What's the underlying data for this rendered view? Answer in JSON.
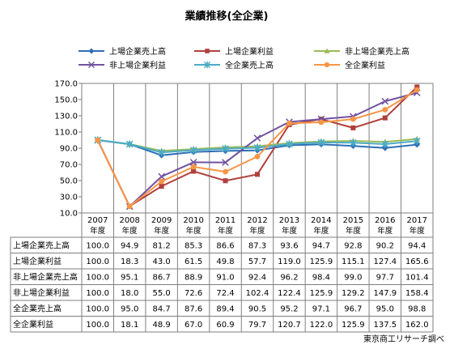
{
  "chart_data": {
    "type": "line",
    "title": "業績推移(全企業)",
    "source": "東京商工リサーチ調べ",
    "ylim": [
      10,
      170
    ],
    "yticks": [
      "170.0",
      "150.0",
      "130.0",
      "110.0",
      "90.0",
      "70.0",
      "50.0",
      "30.0",
      "10.0"
    ],
    "categories": [
      "2007",
      "2008",
      "2009",
      "2010",
      "2011",
      "2012",
      "2013",
      "2014",
      "2015",
      "2016",
      "2017"
    ],
    "category_suffix": "年度",
    "grid": "vertical",
    "legend_position": "top",
    "series": [
      {
        "name": "上場企業売上高",
        "color": "#2e6fb5",
        "marker": "diamond",
        "values": [
          100.0,
          94.9,
          81.2,
          85.3,
          86.6,
          87.3,
          93.6,
          94.7,
          92.8,
          90.2,
          94.4
        ],
        "labels": [
          "100.0",
          "94.9",
          "81.2",
          "85.3",
          "86.6",
          "87.3",
          "93.6",
          "94.7",
          "92.8",
          "90.2",
          "94.4"
        ]
      },
      {
        "name": "上場企業利益",
        "color": "#b0413e",
        "marker": "square",
        "values": [
          100.0,
          18.3,
          43.0,
          61.5,
          49.8,
          57.7,
          119.0,
          125.9,
          115.1,
          127.4,
          165.6
        ],
        "labels": [
          "100.0",
          "18.3",
          "43.0",
          "61.5",
          "49.8",
          "57.7",
          "119.0",
          "125.9",
          "115.1",
          "127.4",
          "165.6"
        ]
      },
      {
        "name": "非上場企業売上高",
        "color": "#9bbb59",
        "marker": "triangle",
        "values": [
          100.0,
          95.1,
          86.7,
          88.9,
          91.0,
          92.4,
          96.2,
          98.4,
          99.0,
          97.7,
          101.4
        ],
        "labels": [
          "100.0",
          "95.1",
          "86.7",
          "88.9",
          "91.0",
          "92.4",
          "96.2",
          "98.4",
          "99.0",
          "97.7",
          "101.4"
        ]
      },
      {
        "name": "非上場企業利益",
        "color": "#7153a0",
        "marker": "x",
        "values": [
          100.0,
          18.0,
          55.0,
          72.6,
          72.4,
          102.4,
          122.4,
          125.9,
          129.2,
          147.9,
          158.4
        ],
        "labels": [
          "100.0",
          "18.0",
          "55.0",
          "72.6",
          "72.4",
          "102.4",
          "122.4",
          "125.9",
          "129.2",
          "147.9",
          "158.4"
        ]
      },
      {
        "name": "全企業売上高",
        "color": "#4bacc6",
        "marker": "star",
        "values": [
          100.0,
          95.0,
          84.7,
          87.6,
          89.4,
          90.5,
          95.2,
          97.1,
          96.7,
          95.0,
          98.8
        ],
        "labels": [
          "100.0",
          "95.0",
          "84.7",
          "87.6",
          "89.4",
          "90.5",
          "95.2",
          "97.1",
          "96.7",
          "95.0",
          "98.8"
        ]
      },
      {
        "name": "全企業利益",
        "color": "#f79646",
        "marker": "circle",
        "values": [
          100.0,
          18.1,
          48.9,
          67.0,
          60.9,
          79.7,
          120.7,
          122.0,
          125.9,
          137.5,
          162.0
        ],
        "labels": [
          "100.0",
          "18.1",
          "48.9",
          "67.0",
          "60.9",
          "79.7",
          "120.7",
          "122.0",
          "125.9",
          "137.5",
          "162.0"
        ]
      }
    ]
  }
}
